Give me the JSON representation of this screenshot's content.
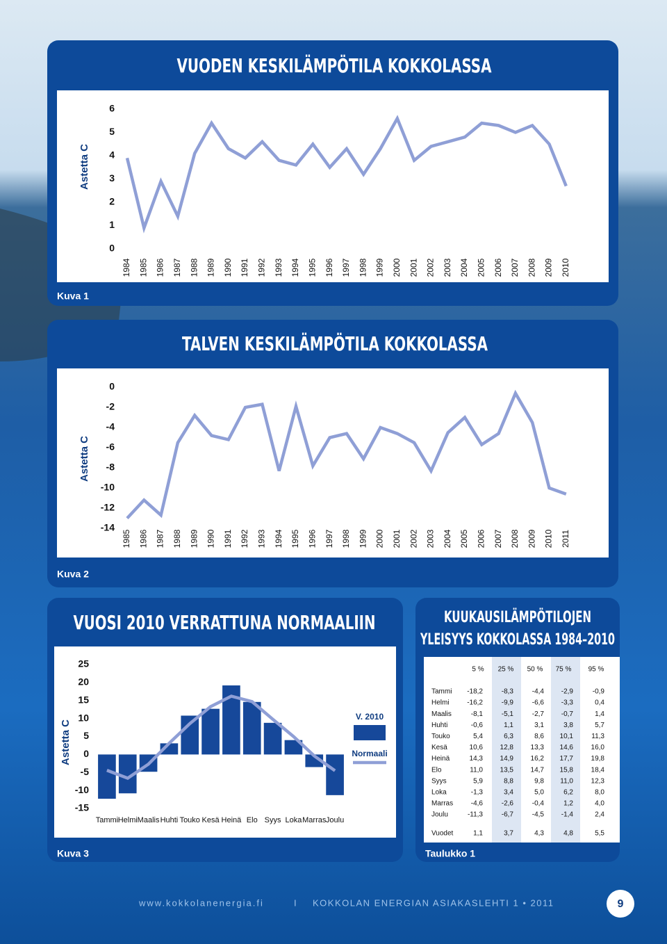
{
  "chart_data": [
    {
      "type": "line",
      "title": "VUODEN KESKILÄMPÖTILA KOKKOLASSA",
      "y_label": "Astetta C",
      "categories": [
        "1984",
        "1985",
        "1986",
        "1987",
        "1988",
        "1989",
        "1990",
        "1991",
        "1992",
        "1993",
        "1994",
        "1995",
        "1996",
        "1997",
        "1998",
        "1999",
        "2000",
        "2001",
        "2002",
        "2003",
        "2004",
        "2005",
        "2006",
        "2007",
        "2008",
        "2009",
        "2010"
      ],
      "series": [
        {
          "color": "#8f9fd6",
          "values": [
            3.9,
            0.9,
            2.9,
            1.4,
            4.1,
            5.4,
            4.3,
            3.9,
            4.6,
            3.8,
            3.6,
            4.5,
            3.5,
            4.3,
            3.2,
            4.3,
            5.6,
            3.8,
            4.4,
            4.6,
            4.8,
            5.4,
            5.3,
            5.0,
            5.3,
            4.5,
            2.7
          ]
        }
      ],
      "ylim": [
        0,
        6
      ],
      "yticks": [
        0,
        1,
        2,
        3,
        4,
        5,
        6
      ],
      "grid": false
    },
    {
      "type": "line",
      "title": "TALVEN KESKILÄMPÖTILA KOKKOLASSA",
      "y_label": "Astetta C",
      "categories": [
        "1985",
        "1986",
        "1987",
        "1988",
        "1989",
        "1990",
        "1991",
        "1992",
        "1993",
        "1994",
        "1995",
        "1996",
        "1997",
        "1998",
        "1999",
        "2000",
        "2001",
        "2002",
        "2003",
        "2004",
        "2005",
        "2006",
        "2007",
        "2008",
        "2009",
        "2010",
        "2011"
      ],
      "series": [
        {
          "color": "#8f9fd6",
          "values": [
            -13.0,
            -11.2,
            -12.7,
            -5.5,
            -2.8,
            -4.8,
            -5.2,
            -2.0,
            -1.7,
            -8.3,
            -1.9,
            -7.8,
            -5.0,
            -4.6,
            -7.1,
            -4.0,
            -4.6,
            -5.5,
            -8.3,
            -4.5,
            -3.0,
            -5.7,
            -4.6,
            -0.6,
            -3.5,
            -10.0,
            -10.6
          ]
        }
      ],
      "ylim": [
        -14,
        0
      ],
      "yticks": [
        0,
        -2,
        -4,
        -6,
        -8,
        -10,
        -12,
        -14
      ],
      "grid": false
    },
    {
      "type": "combo",
      "title": "VUOSI 2010 VERRATTUNA NORMAALIIN",
      "y_label": "Astetta C",
      "categories": [
        "Tammi",
        "Helmi",
        "Maalis",
        "Huhti",
        "Touko",
        "Kesä",
        "Heinä",
        "Elo",
        "Syys",
        "Loka",
        "Marras",
        "Joulu"
      ],
      "series": [
        {
          "name": "V. 2010",
          "type": "bar",
          "color": "#16489a",
          "values": [
            -12.3,
            -10.8,
            -4.8,
            3.1,
            10.8,
            12.7,
            19.2,
            14.6,
            8.8,
            4.0,
            -3.5,
            -11.3
          ]
        },
        {
          "name": "Normaali",
          "type": "line",
          "color": "#8f9fd6",
          "values": [
            -4.4,
            -6.6,
            -2.7,
            3.1,
            8.6,
            13.3,
            16.2,
            14.7,
            9.8,
            5.0,
            -0.4,
            -4.5
          ]
        }
      ],
      "ylim": [
        -15,
        25
      ],
      "yticks": [
        25,
        20,
        15,
        10,
        5,
        0,
        -5,
        -10,
        -15
      ],
      "grid": false,
      "legend": "right"
    }
  ],
  "table": {
    "title_lines": [
      "KUUKAUSILÄMPÖTILOJEN",
      "YLEISYYS KOKKOLASSA 1984–2010"
    ],
    "columns": [
      "5 %",
      "25 %",
      "50 %",
      "75 %",
      "95 %"
    ],
    "rows": [
      [
        "Tammi",
        "-18,2",
        "-8,3",
        "-4,4",
        "-2,9",
        "-0,9"
      ],
      [
        "Helmi",
        "-16,2",
        "-9,9",
        "-6,6",
        "-3,3",
        "0,4"
      ],
      [
        "Maalis",
        "-8,1",
        "-5,1",
        "-2,7",
        "-0,7",
        "1,4"
      ],
      [
        "Huhti",
        "-0,6",
        "1,1",
        "3,1",
        "3,8",
        "5,7"
      ],
      [
        "Touko",
        "5,4",
        "6,3",
        "8,6",
        "10,1",
        "11,3"
      ],
      [
        "Kesä",
        "10,6",
        "12,8",
        "13,3",
        "14,6",
        "16,0"
      ],
      [
        "Heinä",
        "14,3",
        "14,9",
        "16,2",
        "17,7",
        "19,8"
      ],
      [
        "Elo",
        "11,0",
        "13,5",
        "14,7",
        "15,8",
        "18,4"
      ],
      [
        "Syys",
        "5,9",
        "8,8",
        "9,8",
        "11,0",
        "12,3"
      ],
      [
        "Loka",
        "-1,3",
        "3,4",
        "5,0",
        "6,2",
        "8,0"
      ],
      [
        "Marras",
        "-4,6",
        "-2,6",
        "-0,4",
        "1,2",
        "4,0"
      ],
      [
        "Joulu",
        "-11,3",
        "-6,7",
        "-4,5",
        "-1,4",
        "2,4"
      ]
    ],
    "total": [
      "Vuodet",
      "1,1",
      "3,7",
      "4,3",
      "4,8",
      "5,5"
    ]
  },
  "captions": [
    "Kuva 1",
    "Kuva 2",
    "Kuva 3",
    "Taulukko 1"
  ],
  "footer": {
    "url": "www.kokkolanenergia.fi",
    "separator": "I",
    "publication": "KOKKOLAN ENERGIAN ASIAKASLEHTI 1 • 2011",
    "page": "9"
  }
}
